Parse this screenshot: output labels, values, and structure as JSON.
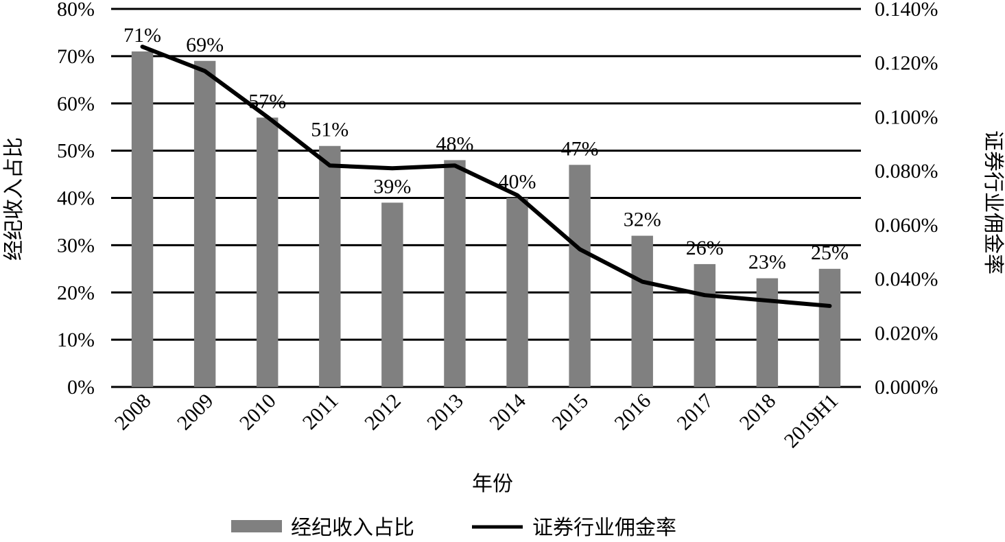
{
  "chart_data": {
    "type": "bar",
    "categories": [
      "2008",
      "2009",
      "2010",
      "2011",
      "2012",
      "2013",
      "2014",
      "2015",
      "2016",
      "2017",
      "2018",
      "2019H1"
    ],
    "xlabel": "年份",
    "ylabel_left": "经纪收入占比",
    "ylabel_right": "证券行业佣金率",
    "y_left": {
      "min": 0,
      "max": 80,
      "step": 10,
      "ticks": [
        "0%",
        "10%",
        "20%",
        "30%",
        "40%",
        "50%",
        "60%",
        "70%",
        "80%"
      ]
    },
    "y_right": {
      "min": 0,
      "max": 0.14,
      "step": 0.02,
      "ticks": [
        "0.000%",
        "0.020%",
        "0.040%",
        "0.060%",
        "0.080%",
        "0.100%",
        "0.120%",
        "0.140%"
      ]
    },
    "grid": true,
    "legend_position": "bottom-center",
    "series": [
      {
        "name": "经纪收入占比",
        "kind": "bar",
        "axis": "left",
        "color": "#808080",
        "values": [
          71,
          69,
          57,
          51,
          39,
          48,
          40,
          47,
          32,
          26,
          23,
          25
        ],
        "labels": [
          "71%",
          "69%",
          "57%",
          "51%",
          "39%",
          "48%",
          "40%",
          "47%",
          "32%",
          "26%",
          "23%",
          "25%"
        ]
      },
      {
        "name": "证券行业佣金率",
        "kind": "line",
        "axis": "right",
        "color": "#000000",
        "values": [
          0.126,
          0.117,
          0.1,
          0.082,
          0.081,
          0.082,
          0.071,
          0.051,
          0.039,
          0.034,
          0.032,
          0.03
        ]
      }
    ]
  }
}
